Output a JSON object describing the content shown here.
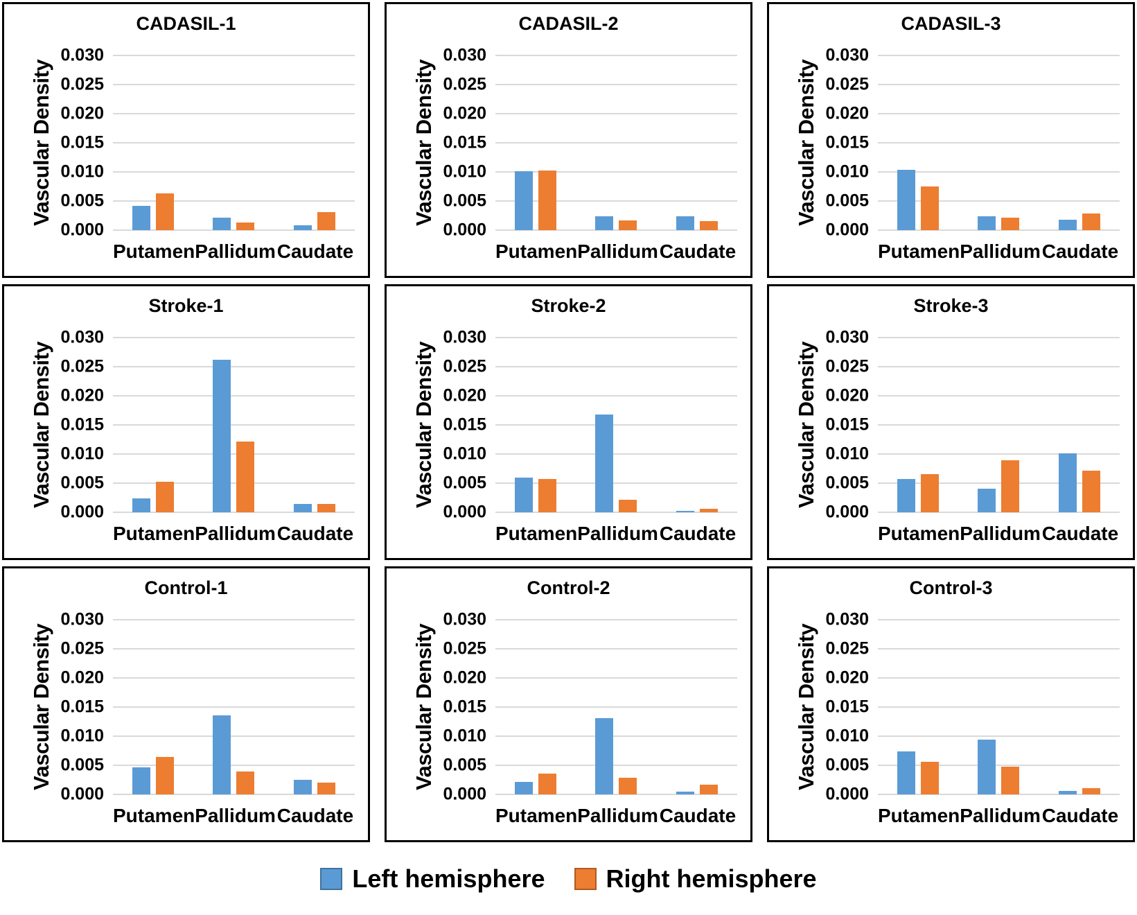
{
  "colors": {
    "left_hemisphere": "#5B9BD5",
    "right_hemisphere": "#ED7D31",
    "left_swatch_border": "#41719C",
    "right_swatch_border": "#AE5A21",
    "gridline": "#D9D9D9",
    "panel_border": "#000000"
  },
  "shared": {
    "ylabel": "Vascular Density",
    "yticks": [
      "0.030",
      "0.025",
      "0.020",
      "0.015",
      "0.010",
      "0.005",
      "0.000"
    ],
    "ylim": [
      0,
      0.03
    ],
    "categories": [
      "Putamen",
      "Pallidum",
      "Caudate"
    ],
    "grid": "horizontal gridlines on",
    "legend_position": "bottom center"
  },
  "legend": {
    "items": [
      {
        "label": "Left hemisphere",
        "color": "#5B9BD5"
      },
      {
        "label": "Right hemisphere",
        "color": "#ED7D31"
      }
    ]
  },
  "chart_data": [
    {
      "type": "bar",
      "title": "CADASIL-1",
      "categories": [
        "Putamen",
        "Pallidum",
        "Caudate"
      ],
      "xlabel": "",
      "ylabel": "Vascular Density",
      "ylim": [
        0,
        0.03
      ],
      "series": [
        {
          "name": "Left hemisphere",
          "values": [
            0.0042,
            0.0022,
            0.0008
          ]
        },
        {
          "name": "Right hemisphere",
          "values": [
            0.0063,
            0.0013,
            0.0031
          ]
        }
      ]
    },
    {
      "type": "bar",
      "title": "CADASIL-2",
      "categories": [
        "Putamen",
        "Pallidum",
        "Caudate"
      ],
      "xlabel": "",
      "ylabel": "Vascular Density",
      "ylim": [
        0,
        0.03
      ],
      "series": [
        {
          "name": "Left hemisphere",
          "values": [
            0.0101,
            0.0024,
            0.0024
          ]
        },
        {
          "name": "Right hemisphere",
          "values": [
            0.0102,
            0.0017,
            0.0015
          ]
        }
      ]
    },
    {
      "type": "bar",
      "title": "CADASIL-3",
      "categories": [
        "Putamen",
        "Pallidum",
        "Caudate"
      ],
      "xlabel": "",
      "ylabel": "Vascular Density",
      "ylim": [
        0,
        0.03
      ],
      "series": [
        {
          "name": "Left hemisphere",
          "values": [
            0.0103,
            0.0024,
            0.0018
          ]
        },
        {
          "name": "Right hemisphere",
          "values": [
            0.0075,
            0.0021,
            0.0028
          ]
        }
      ]
    },
    {
      "type": "bar",
      "title": "Stroke-1",
      "categories": [
        "Putamen",
        "Pallidum",
        "Caudate"
      ],
      "xlabel": "",
      "ylabel": "Vascular Density",
      "ylim": [
        0,
        0.03
      ],
      "series": [
        {
          "name": "Left hemisphere",
          "values": [
            0.0024,
            0.0262,
            0.0014
          ]
        },
        {
          "name": "Right hemisphere",
          "values": [
            0.0052,
            0.0122,
            0.0014
          ]
        }
      ]
    },
    {
      "type": "bar",
      "title": "Stroke-2",
      "categories": [
        "Putamen",
        "Pallidum",
        "Caudate"
      ],
      "xlabel": "",
      "ylabel": "Vascular Density",
      "ylim": [
        0,
        0.03
      ],
      "series": [
        {
          "name": "Left hemisphere",
          "values": [
            0.0059,
            0.0168,
            0.0002
          ]
        },
        {
          "name": "Right hemisphere",
          "values": [
            0.0057,
            0.0021,
            0.0006
          ]
        }
      ]
    },
    {
      "type": "bar",
      "title": "Stroke-3",
      "categories": [
        "Putamen",
        "Pallidum",
        "Caudate"
      ],
      "xlabel": "",
      "ylabel": "Vascular Density",
      "ylim": [
        0,
        0.03
      ],
      "series": [
        {
          "name": "Left hemisphere",
          "values": [
            0.0057,
            0.004,
            0.0101
          ]
        },
        {
          "name": "Right hemisphere",
          "values": [
            0.0065,
            0.0089,
            0.0072
          ]
        }
      ]
    },
    {
      "type": "bar",
      "title": "Control-1",
      "categories": [
        "Putamen",
        "Pallidum",
        "Caudate"
      ],
      "xlabel": "",
      "ylabel": "Vascular Density",
      "ylim": [
        0,
        0.03
      ],
      "series": [
        {
          "name": "Left hemisphere",
          "values": [
            0.0046,
            0.0136,
            0.0025
          ]
        },
        {
          "name": "Right hemisphere",
          "values": [
            0.0064,
            0.0039,
            0.002
          ]
        }
      ]
    },
    {
      "type": "bar",
      "title": "Control-2",
      "categories": [
        "Putamen",
        "Pallidum",
        "Caudate"
      ],
      "xlabel": "",
      "ylabel": "Vascular Density",
      "ylim": [
        0,
        0.03
      ],
      "series": [
        {
          "name": "Left hemisphere",
          "values": [
            0.0021,
            0.0131,
            0.0005
          ]
        },
        {
          "name": "Right hemisphere",
          "values": [
            0.0036,
            0.0029,
            0.0017
          ]
        }
      ]
    },
    {
      "type": "bar",
      "title": "Control-3",
      "categories": [
        "Putamen",
        "Pallidum",
        "Caudate"
      ],
      "xlabel": "",
      "ylabel": "Vascular Density",
      "ylim": [
        0,
        0.03
      ],
      "series": [
        {
          "name": "Left hemisphere",
          "values": [
            0.0074,
            0.0094,
            0.0006
          ]
        },
        {
          "name": "Right hemisphere",
          "values": [
            0.0056,
            0.0048,
            0.0011
          ]
        }
      ]
    }
  ]
}
